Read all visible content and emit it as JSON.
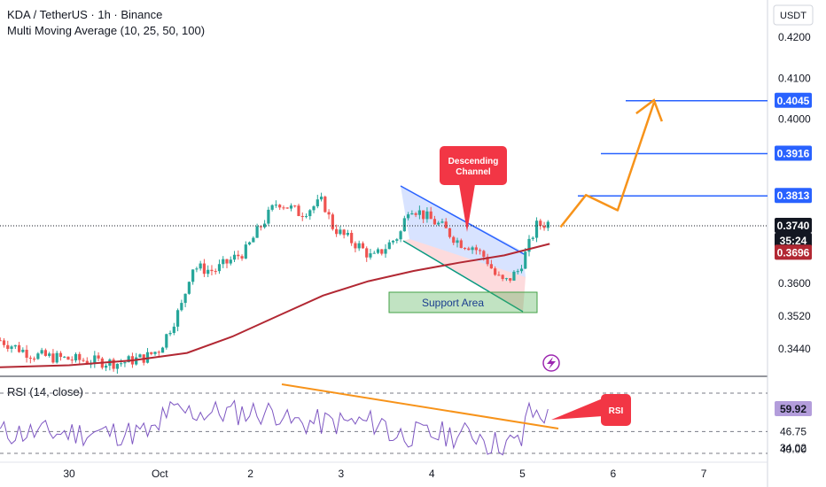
{
  "header": {
    "symbol": "KDA / TetherUS · 1h · Binance",
    "indicator": "Multi Moving Average (10, 25, 50, 100)",
    "currency": "USDT"
  },
  "rsi_label": "RSI (14, close)",
  "colors": {
    "up": "#26a69a",
    "down": "#ef5350",
    "ma": "#b22833",
    "rsi": "#7e57c2",
    "blue_level": "#2962ff",
    "orange": "#f7931a",
    "callout": "#f23645"
  },
  "chart_data": {
    "type": "candlestick",
    "ylim": [
      0.3385,
      0.4255
    ],
    "y_ticks": [
      "0.4200",
      "0.4100",
      "0.4000",
      "0.3600",
      "0.3520",
      "0.3440"
    ],
    "x_ticks": [
      "30",
      "Oct",
      "2",
      "3",
      "4",
      "5",
      "6",
      "7"
    ],
    "price_labels": {
      "last": "0.3740",
      "countdown": "35:24",
      "ma": "0.3696",
      "levels": [
        "0.4045",
        "0.3916",
        "0.3813"
      ]
    },
    "levels": [
      0.4045,
      0.3916,
      0.3813
    ],
    "annotations": {
      "descending_channel": "Descending\nChannel",
      "support_area": "Support Area",
      "rsi_callout": "RSI"
    },
    "projection": [
      [
        5.42,
        0.3737
      ],
      [
        5.7,
        0.3815
      ],
      [
        6.05,
        0.3778
      ],
      [
        6.45,
        0.404
      ]
    ],
    "rsi": {
      "ylim": [
        30,
        72
      ],
      "labels": [
        "59.92",
        "46.75",
        "40.00",
        "34.02"
      ],
      "last": 59.92
    }
  }
}
